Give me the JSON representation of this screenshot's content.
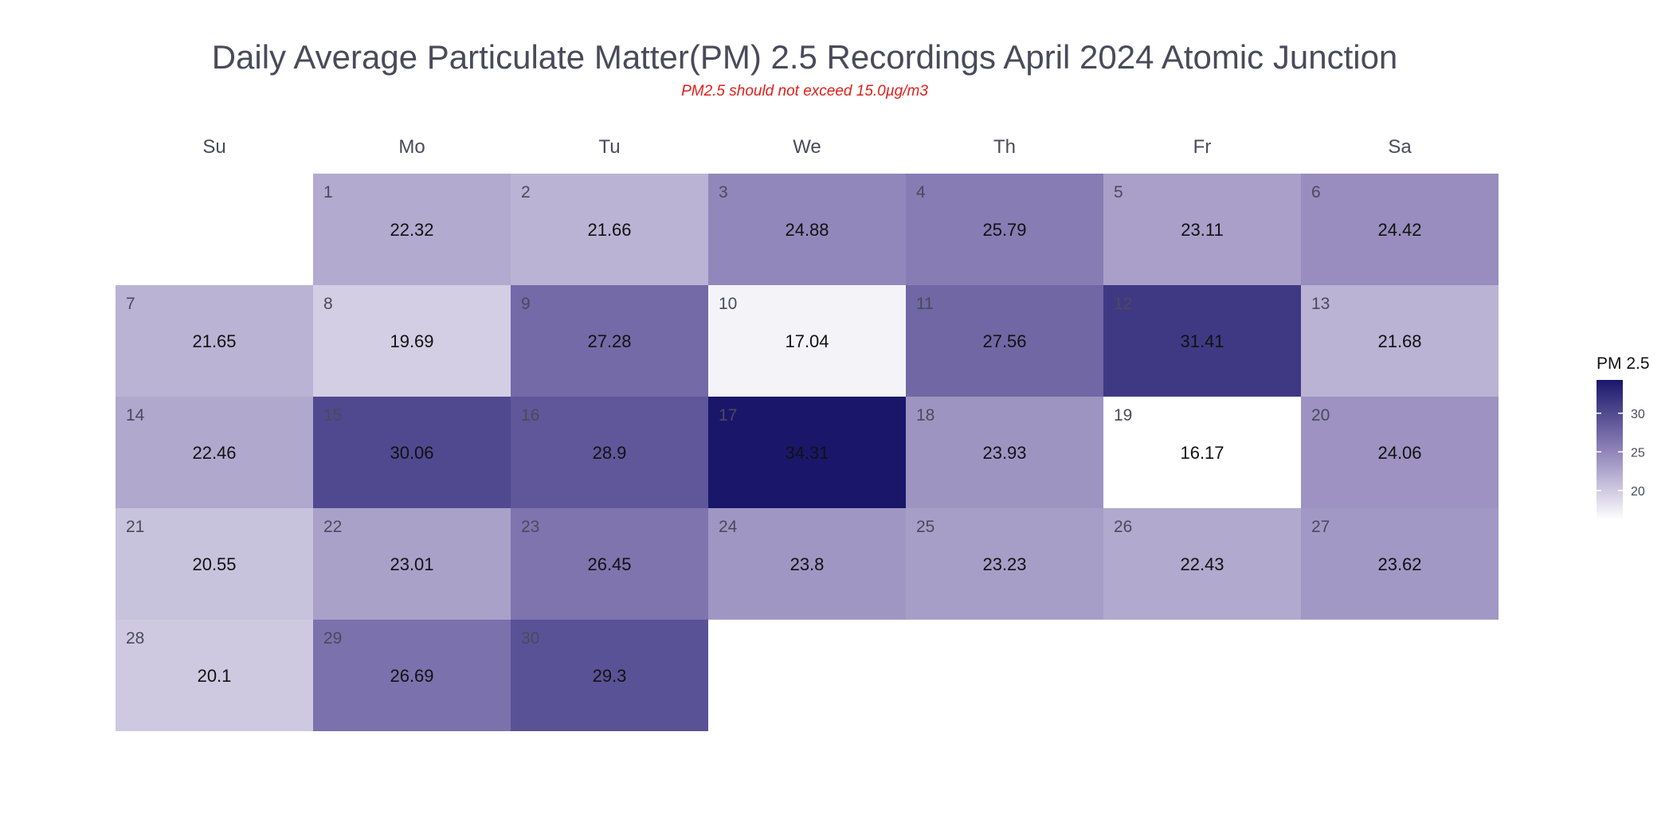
{
  "chart_data": {
    "type": "heatmap",
    "title": "Daily Average Particulate Matter(PM) 2.5 Recordings April 2024 Atomic Junction",
    "subtitle": "PM2.5 should not exceed 15.0µg/m3",
    "weekdays": [
      "Su",
      "Mo",
      "Tu",
      "We",
      "Th",
      "Fr",
      "Sa"
    ],
    "first_weekday_index": 1,
    "days": [
      1,
      2,
      3,
      4,
      5,
      6,
      7,
      8,
      9,
      10,
      11,
      12,
      13,
      14,
      15,
      16,
      17,
      18,
      19,
      20,
      21,
      22,
      23,
      24,
      25,
      26,
      27,
      28,
      29,
      30
    ],
    "values": [
      22.32,
      21.66,
      24.88,
      25.79,
      23.11,
      24.42,
      21.65,
      19.69,
      27.28,
      17.04,
      27.56,
      31.41,
      21.68,
      22.46,
      30.06,
      28.9,
      34.31,
      23.93,
      16.17,
      24.06,
      20.55,
      23.01,
      26.45,
      23.8,
      23.23,
      22.43,
      23.62,
      20.1,
      26.69,
      29.3
    ],
    "legend": {
      "title": "PM 2.5",
      "ticks": [
        20,
        25,
        30
      ],
      "range": [
        16.17,
        34.31
      ],
      "placement": "right"
    },
    "colors": {
      "low": "#ffffff",
      "high": "#1a176b"
    }
  }
}
